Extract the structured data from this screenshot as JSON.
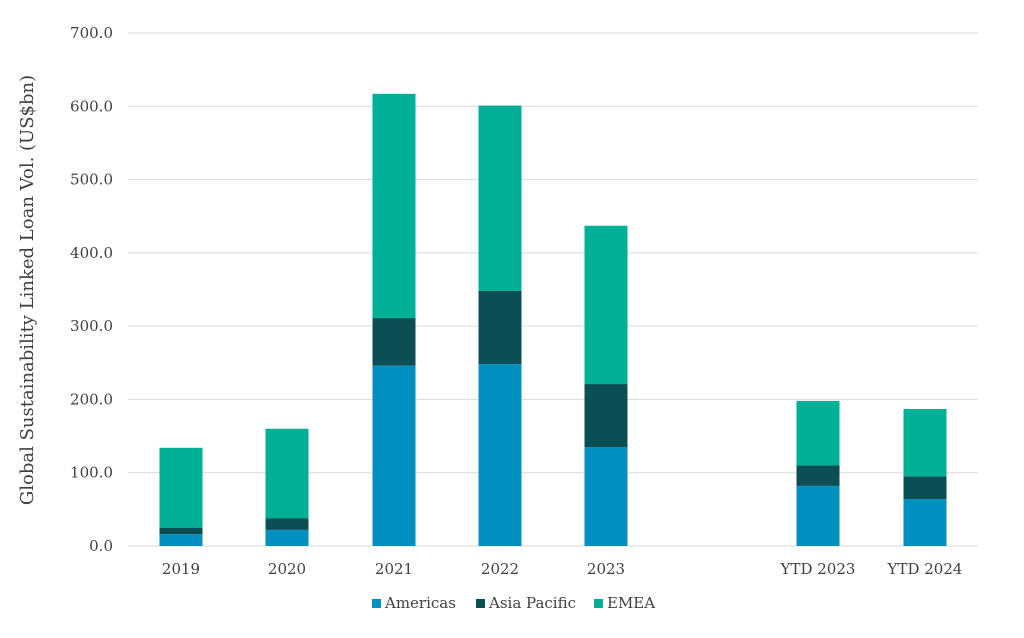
{
  "chart_data": {
    "type": "bar",
    "stacked": true,
    "title": "",
    "xlabel": "",
    "ylabel": "Global Sustainability Linked Loan Vol. (US$bn)",
    "ylim": [
      0,
      700
    ],
    "yticks": [
      "0.0",
      "100.0",
      "200.0",
      "300.0",
      "400.0",
      "500.0",
      "600.0",
      "700.0"
    ],
    "grid": true,
    "legend_position": "bottom",
    "categories": [
      "2019",
      "2020",
      "2021",
      "2022",
      "2023",
      "YTD 2023",
      "YTD 2024"
    ],
    "series": [
      {
        "name": "Americas",
        "color": "#0090c0",
        "values": [
          16,
          22,
          246,
          248,
          135,
          82,
          64
        ]
      },
      {
        "name": "Asia Pacific",
        "color": "#0b4f55",
        "values": [
          9,
          16,
          65,
          100,
          86,
          28,
          31
        ]
      },
      {
        "name": "EMEA",
        "color": "#00b096",
        "values": [
          109,
          122,
          306,
          253,
          216,
          88,
          92
        ]
      }
    ]
  }
}
